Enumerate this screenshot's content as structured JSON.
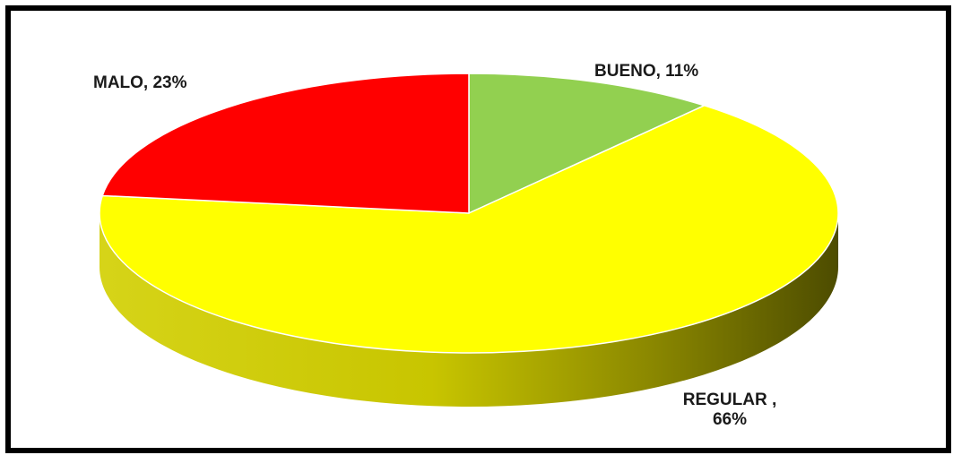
{
  "chart_data": {
    "type": "pie",
    "style": "3d",
    "categories": [
      "BUENO",
      "REGULAR",
      "MALO"
    ],
    "values": [
      11,
      66,
      23
    ],
    "unit": "%",
    "colors": [
      "#92d050",
      "#ffff00",
      "#ff0000"
    ],
    "title": "",
    "legend": "none",
    "labels": [
      {
        "category": "BUENO",
        "text": "BUENO, 11%"
      },
      {
        "category": "REGULAR",
        "line1": "REGULAR ,",
        "line2": "66%"
      },
      {
        "category": "MALO",
        "text": "MALO, 23%"
      }
    ]
  }
}
